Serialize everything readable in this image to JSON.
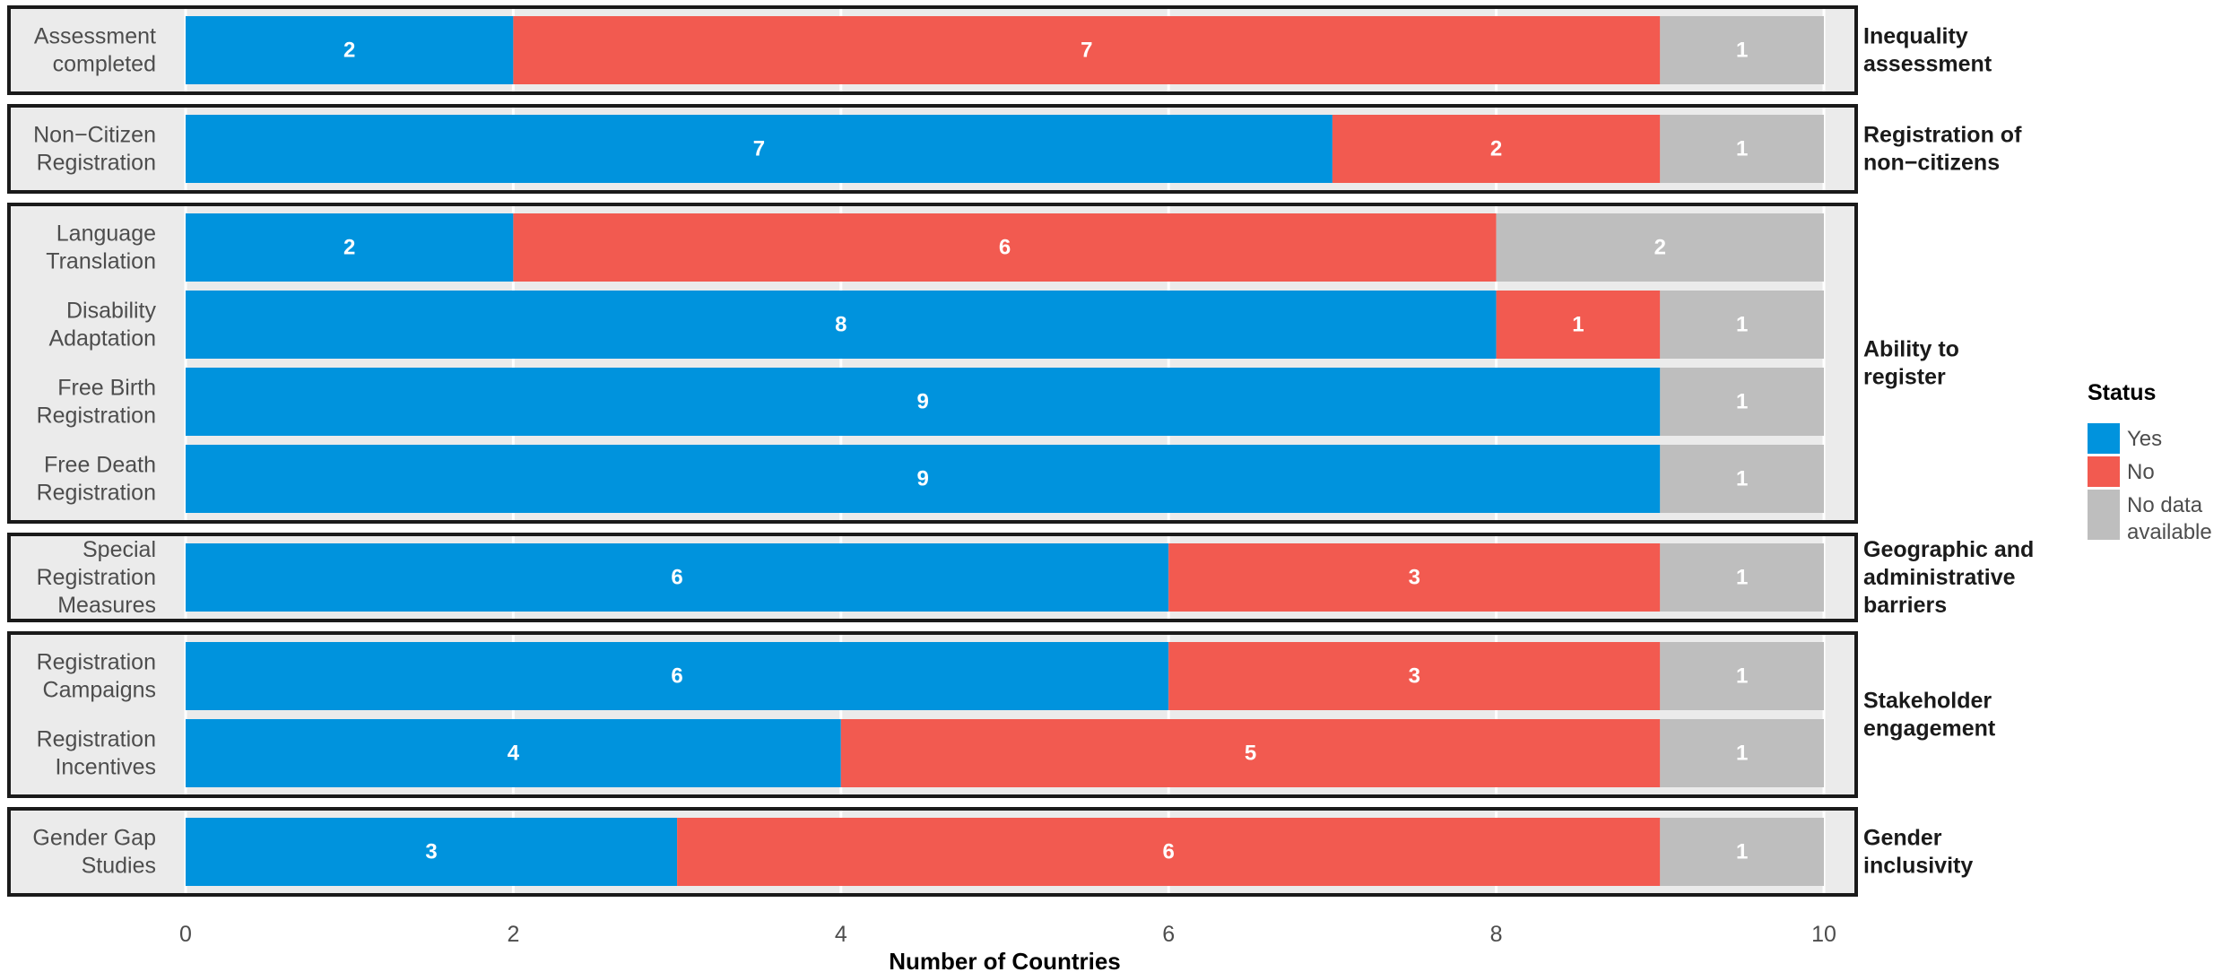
{
  "chart_data": {
    "type": "bar",
    "orientation": "horizontal",
    "stacked": true,
    "xlabel": "Number of Countries",
    "xlim": [
      0,
      10
    ],
    "xticks": [
      0,
      2,
      4,
      6,
      8,
      10
    ],
    "legend": {
      "title": "Status",
      "position": "right",
      "entries": [
        {
          "label": "Yes",
          "color": "#0093DD"
        },
        {
          "label": "No",
          "color": "#F25A50"
        },
        {
          "label": "No data\navailable",
          "color": "#BEBEBE"
        }
      ]
    },
    "series": [
      {
        "name": "Yes",
        "color": "#0093DD"
      },
      {
        "name": "No",
        "color": "#F25A50"
      },
      {
        "name": "No data\navailable",
        "color": "#BEBEBE"
      }
    ],
    "facets": [
      {
        "label": "Inequality\nassessment",
        "rows": [
          {
            "label": "Assessment\ncompleted",
            "values": [
              2,
              7,
              1
            ]
          }
        ]
      },
      {
        "label": "Registration of\nnon−citizens",
        "rows": [
          {
            "label": "Non−Citizen\nRegistration",
            "values": [
              7,
              2,
              1
            ]
          }
        ]
      },
      {
        "label": "Ability to\nregister",
        "rows": [
          {
            "label": "Language\nTranslation",
            "values": [
              2,
              6,
              2
            ]
          },
          {
            "label": "Disability\nAdaptation",
            "values": [
              8,
              1,
              1
            ]
          },
          {
            "label": "Free Birth\nRegistration",
            "values": [
              9,
              0,
              1
            ]
          },
          {
            "label": "Free Death\nRegistration",
            "values": [
              9,
              0,
              1
            ]
          }
        ]
      },
      {
        "label": "Geographic and\nadministrative\nbarriers",
        "rows": [
          {
            "label": "Special\nRegistration\nMeasures",
            "values": [
              6,
              3,
              1
            ]
          }
        ]
      },
      {
        "label": "Stakeholder\nengagement",
        "rows": [
          {
            "label": "Registration\nCampaigns",
            "values": [
              6,
              3,
              1
            ]
          },
          {
            "label": "Registration\nIncentives",
            "values": [
              4,
              5,
              1
            ]
          }
        ]
      },
      {
        "label": "Gender\ninclusivity",
        "rows": [
          {
            "label": "Gender Gap\nStudies",
            "values": [
              3,
              6,
              1
            ]
          }
        ]
      }
    ]
  }
}
